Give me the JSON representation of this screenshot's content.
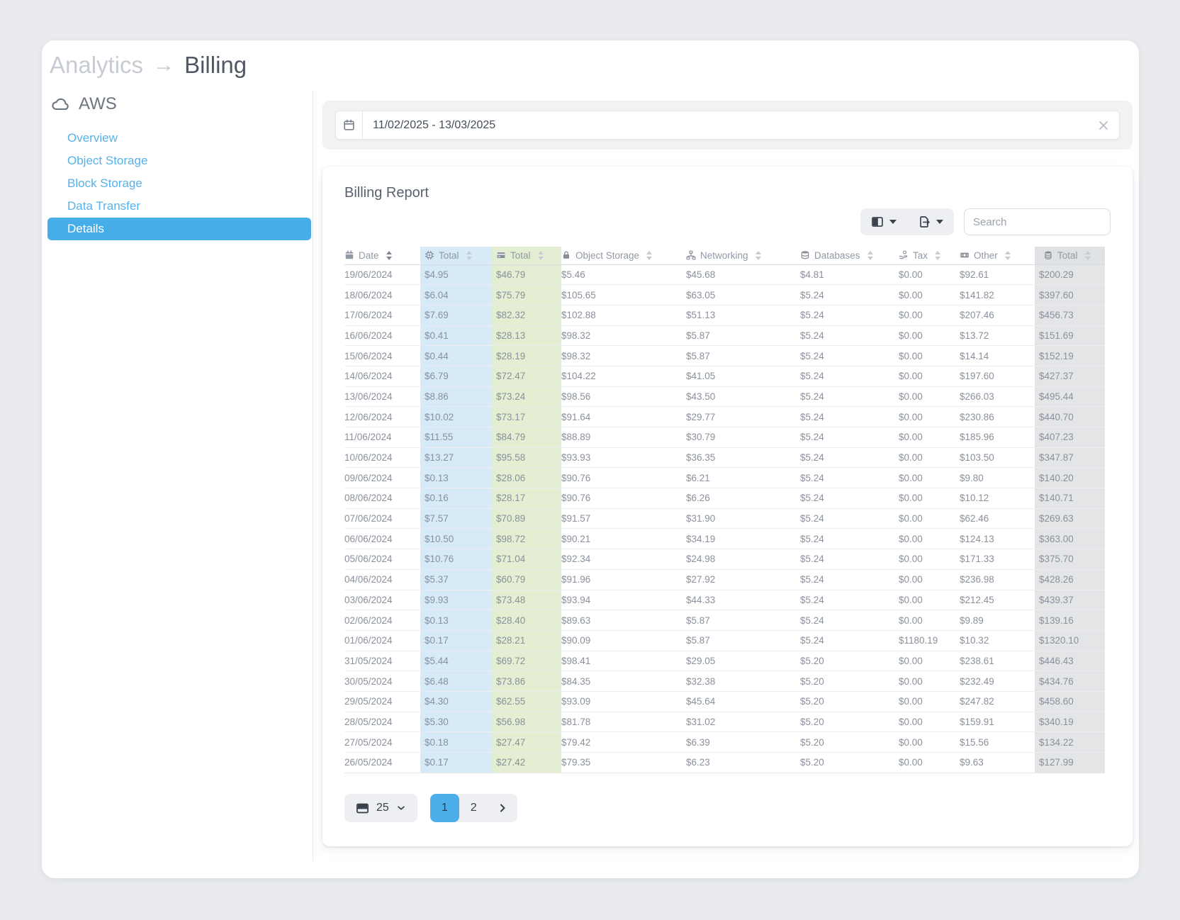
{
  "breadcrumb": {
    "parent": "Analytics",
    "separator": "→",
    "current": "Billing"
  },
  "sidebar": {
    "title": "AWS",
    "items": [
      {
        "label": "Overview"
      },
      {
        "label": "Object Storage"
      },
      {
        "label": "Block Storage"
      },
      {
        "label": "Data Transfer"
      },
      {
        "label": "Details"
      }
    ],
    "active_item": "Details"
  },
  "date_range": {
    "value": "11/02/2025 - 13/03/2025"
  },
  "report": {
    "title": "Billing Report",
    "search_placeholder": "Search",
    "columns": [
      {
        "label": "Date",
        "icon": "calendar-icon",
        "highlight": ""
      },
      {
        "label": "Total",
        "icon": "chip-icon",
        "highlight": "blue"
      },
      {
        "label": "Total",
        "icon": "card-icon",
        "highlight": "green"
      },
      {
        "label": "Object Storage",
        "icon": "lock-icon",
        "highlight": ""
      },
      {
        "label": "Networking",
        "icon": "network-icon",
        "highlight": ""
      },
      {
        "label": "Databases",
        "icon": "database-icon",
        "highlight": ""
      },
      {
        "label": "Tax",
        "icon": "tax-icon",
        "highlight": ""
      },
      {
        "label": "Other",
        "icon": "cash-icon",
        "highlight": ""
      },
      {
        "label": "Total",
        "icon": "coins-icon",
        "highlight": "gray"
      }
    ],
    "rows": [
      [
        "19/06/2024",
        "$4.95",
        "$46.79",
        "$5.46",
        "$45.68",
        "$4.81",
        "$0.00",
        "$92.61",
        "$200.29"
      ],
      [
        "18/06/2024",
        "$6.04",
        "$75.79",
        "$105.65",
        "$63.05",
        "$5.24",
        "$0.00",
        "$141.82",
        "$397.60"
      ],
      [
        "17/06/2024",
        "$7.69",
        "$82.32",
        "$102.88",
        "$51.13",
        "$5.24",
        "$0.00",
        "$207.46",
        "$456.73"
      ],
      [
        "16/06/2024",
        "$0.41",
        "$28.13",
        "$98.32",
        "$5.87",
        "$5.24",
        "$0.00",
        "$13.72",
        "$151.69"
      ],
      [
        "15/06/2024",
        "$0.44",
        "$28.19",
        "$98.32",
        "$5.87",
        "$5.24",
        "$0.00",
        "$14.14",
        "$152.19"
      ],
      [
        "14/06/2024",
        "$6.79",
        "$72.47",
        "$104.22",
        "$41.05",
        "$5.24",
        "$0.00",
        "$197.60",
        "$427.37"
      ],
      [
        "13/06/2024",
        "$8.86",
        "$73.24",
        "$98.56",
        "$43.50",
        "$5.24",
        "$0.00",
        "$266.03",
        "$495.44"
      ],
      [
        "12/06/2024",
        "$10.02",
        "$73.17",
        "$91.64",
        "$29.77",
        "$5.24",
        "$0.00",
        "$230.86",
        "$440.70"
      ],
      [
        "11/06/2024",
        "$11.55",
        "$84.79",
        "$88.89",
        "$30.79",
        "$5.24",
        "$0.00",
        "$185.96",
        "$407.23"
      ],
      [
        "10/06/2024",
        "$13.27",
        "$95.58",
        "$93.93",
        "$36.35",
        "$5.24",
        "$0.00",
        "$103.50",
        "$347.87"
      ],
      [
        "09/06/2024",
        "$0.13",
        "$28.06",
        "$90.76",
        "$6.21",
        "$5.24",
        "$0.00",
        "$9.80",
        "$140.20"
      ],
      [
        "08/06/2024",
        "$0.16",
        "$28.17",
        "$90.76",
        "$6.26",
        "$5.24",
        "$0.00",
        "$10.12",
        "$140.71"
      ],
      [
        "07/06/2024",
        "$7.57",
        "$70.89",
        "$91.57",
        "$31.90",
        "$5.24",
        "$0.00",
        "$62.46",
        "$269.63"
      ],
      [
        "06/06/2024",
        "$10.50",
        "$98.72",
        "$90.21",
        "$34.19",
        "$5.24",
        "$0.00",
        "$124.13",
        "$363.00"
      ],
      [
        "05/06/2024",
        "$10.76",
        "$71.04",
        "$92.34",
        "$24.98",
        "$5.24",
        "$0.00",
        "$171.33",
        "$375.70"
      ],
      [
        "04/06/2024",
        "$5.37",
        "$60.79",
        "$91.96",
        "$27.92",
        "$5.24",
        "$0.00",
        "$236.98",
        "$428.26"
      ],
      [
        "03/06/2024",
        "$9.93",
        "$73.48",
        "$93.94",
        "$44.33",
        "$5.24",
        "$0.00",
        "$212.45",
        "$439.37"
      ],
      [
        "02/06/2024",
        "$0.13",
        "$28.40",
        "$89.63",
        "$5.87",
        "$5.24",
        "$0.00",
        "$9.89",
        "$139.16"
      ],
      [
        "01/06/2024",
        "$0.17",
        "$28.21",
        "$90.09",
        "$5.87",
        "$5.24",
        "$1180.19",
        "$10.32",
        "$1320.10"
      ],
      [
        "31/05/2024",
        "$5.44",
        "$69.72",
        "$98.41",
        "$29.05",
        "$5.20",
        "$0.00",
        "$238.61",
        "$446.43"
      ],
      [
        "30/05/2024",
        "$6.48",
        "$73.86",
        "$84.35",
        "$32.38",
        "$5.20",
        "$0.00",
        "$232.49",
        "$434.76"
      ],
      [
        "29/05/2024",
        "$4.30",
        "$62.55",
        "$93.09",
        "$45.64",
        "$5.20",
        "$0.00",
        "$247.82",
        "$458.60"
      ],
      [
        "28/05/2024",
        "$5.30",
        "$56.98",
        "$81.78",
        "$31.02",
        "$5.20",
        "$0.00",
        "$159.91",
        "$340.19"
      ],
      [
        "27/05/2024",
        "$0.18",
        "$27.47",
        "$79.42",
        "$6.39",
        "$5.20",
        "$0.00",
        "$15.56",
        "$134.22"
      ],
      [
        "26/05/2024",
        "$0.17",
        "$27.42",
        "$79.35",
        "$6.23",
        "$5.20",
        "$0.00",
        "$9.63",
        "$127.99"
      ]
    ],
    "pagination": {
      "page_size": "25",
      "pages": [
        "1",
        "2"
      ],
      "active_page": "1"
    }
  },
  "colors": {
    "accent_blue": "#47ade9",
    "link_blue": "#57b1e9",
    "col_blue": "#d6eaf7",
    "col_green": "#e3eed2",
    "col_gray": "#e4e5e7",
    "page_bg": "#e9ebee"
  }
}
